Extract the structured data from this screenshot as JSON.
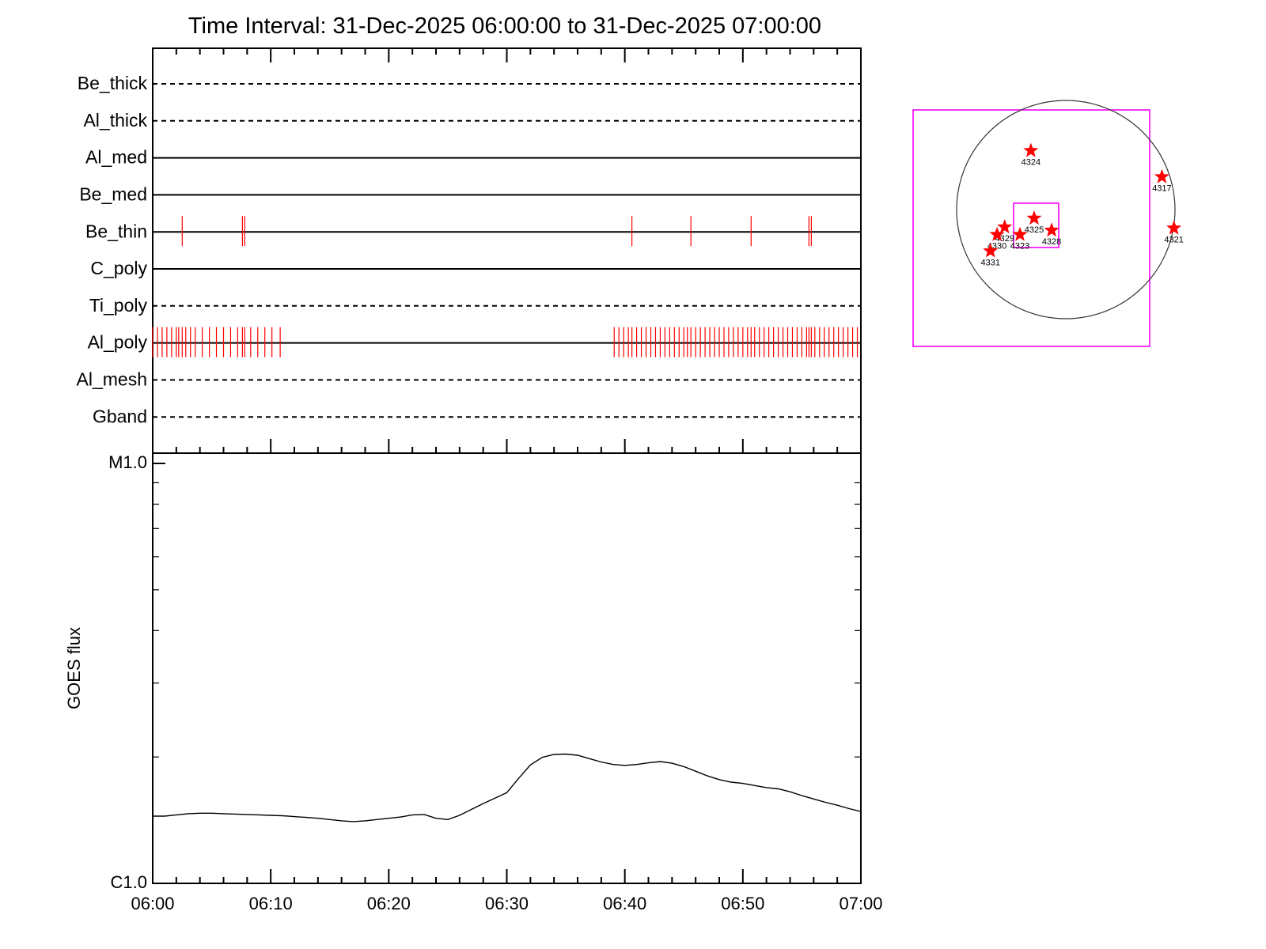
{
  "title": "Time Interval: 31-Dec-2025 06:00:00 to 31-Dec-2025 07:00:00",
  "colors": {
    "axis": "#000000",
    "event_marks": "#ff0000",
    "fov_box": "#ff00ff",
    "goes_line": "#000000",
    "star": "#ff0000"
  },
  "chart_data": [
    {
      "type": "timeline",
      "name": "filter_timeline",
      "x_ticks": [
        "06:00",
        "06:10",
        "06:20",
        "06:30",
        "06:40",
        "06:50",
        "07:00"
      ],
      "xlim_minutes": [
        0,
        60
      ],
      "rows": [
        {
          "label": "Be_thick",
          "style": "dashed",
          "events": []
        },
        {
          "label": "Al_thick",
          "style": "dashed",
          "events": []
        },
        {
          "label": "Al_med",
          "style": "solid",
          "events": []
        },
        {
          "label": "Be_med",
          "style": "solid",
          "events": []
        },
        {
          "label": "Be_thin",
          "style": "solid",
          "events": [
            2.5,
            7.6,
            7.8,
            40.6,
            45.6,
            50.7,
            55.6,
            55.8
          ]
        },
        {
          "label": "C_poly",
          "style": "solid",
          "events": []
        },
        {
          "label": "Ti_poly",
          "style": "dashed",
          "events": []
        },
        {
          "label": "Al_poly",
          "style": "solid",
          "events": [
            0.0,
            0.4,
            0.8,
            1.2,
            1.6,
            2.0,
            2.2,
            2.5,
            2.8,
            3.2,
            3.6,
            4.2,
            4.8,
            5.4,
            6.0,
            6.6,
            7.2,
            7.6,
            7.8,
            8.3,
            8.9,
            9.5,
            10.1,
            10.8,
            39.1,
            39.5,
            39.9,
            40.3,
            40.6,
            41.0,
            41.4,
            41.8,
            42.2,
            42.6,
            43.0,
            43.4,
            43.8,
            44.2,
            44.6,
            45.0,
            45.3,
            45.6,
            46.0,
            46.4,
            46.8,
            47.2,
            47.6,
            48.0,
            48.4,
            48.8,
            49.2,
            49.6,
            50.0,
            50.4,
            50.7,
            51.0,
            51.4,
            51.8,
            52.2,
            52.6,
            53.0,
            53.4,
            53.8,
            54.2,
            54.6,
            55.0,
            55.4,
            55.6,
            55.8,
            56.1,
            56.5,
            56.9,
            57.3,
            57.7,
            58.1,
            58.5,
            58.9,
            59.3,
            59.7
          ]
        },
        {
          "label": "Al_mesh",
          "style": "dashed",
          "events": []
        },
        {
          "label": "Gband",
          "style": "dashed",
          "events": []
        }
      ]
    },
    {
      "type": "line",
      "name": "goes_flux",
      "ylabel": "GOES flux",
      "y_ticks": [
        "C1.0",
        "M1.0"
      ],
      "ylim_fraction": [
        0,
        1
      ],
      "x_ticks": [
        "06:00",
        "06:10",
        "06:20",
        "06:30",
        "06:40",
        "06:50",
        "07:00"
      ],
      "xlim_minutes": [
        0,
        60
      ],
      "x": [
        0,
        1,
        2,
        3,
        4,
        5,
        6,
        7,
        8,
        9,
        10,
        11,
        12,
        13,
        14,
        15,
        16,
        17,
        18,
        19,
        20,
        21,
        22,
        23,
        24,
        25,
        26,
        27,
        28,
        29,
        30,
        31,
        32,
        33,
        34,
        35,
        36,
        37,
        38,
        39,
        40,
        41,
        42,
        43,
        44,
        45,
        46,
        47,
        48,
        49,
        50,
        51,
        52,
        53,
        54,
        55,
        56,
        57,
        58,
        59,
        60
      ],
      "y": [
        0.16,
        0.16,
        0.163,
        0.166,
        0.167,
        0.167,
        0.166,
        0.165,
        0.164,
        0.163,
        0.162,
        0.161,
        0.159,
        0.157,
        0.155,
        0.152,
        0.149,
        0.147,
        0.149,
        0.152,
        0.155,
        0.158,
        0.163,
        0.164,
        0.155,
        0.152,
        0.162,
        0.176,
        0.19,
        0.203,
        0.216,
        0.25,
        0.282,
        0.3,
        0.307,
        0.308,
        0.305,
        0.297,
        0.289,
        0.283,
        0.281,
        0.283,
        0.287,
        0.29,
        0.286,
        0.278,
        0.267,
        0.256,
        0.247,
        0.241,
        0.238,
        0.233,
        0.228,
        0.225,
        0.218,
        0.209,
        0.201,
        0.193,
        0.186,
        0.178,
        0.171
      ]
    },
    {
      "type": "scatter",
      "name": "solar_disk_map",
      "points": [
        {
          "label": "4324",
          "x": -0.32,
          "y": 0.54
        },
        {
          "label": "4317",
          "x": 0.88,
          "y": 0.3
        },
        {
          "label": "4321",
          "x": 0.99,
          "y": -0.17
        },
        {
          "label": "4325",
          "x": -0.29,
          "y": -0.08
        },
        {
          "label": "4328",
          "x": -0.13,
          "y": -0.19
        },
        {
          "label": "4329",
          "x": -0.56,
          "y": -0.16
        },
        {
          "label": "4330",
          "x": -0.63,
          "y": -0.23
        },
        {
          "label": "4323",
          "x": -0.42,
          "y": -0.23
        },
        {
          "label": "4331",
          "x": -0.69,
          "y": -0.38
        }
      ],
      "xlim": [
        -1.4,
        1.4
      ],
      "ylim": [
        -1.4,
        1.4
      ]
    }
  ]
}
